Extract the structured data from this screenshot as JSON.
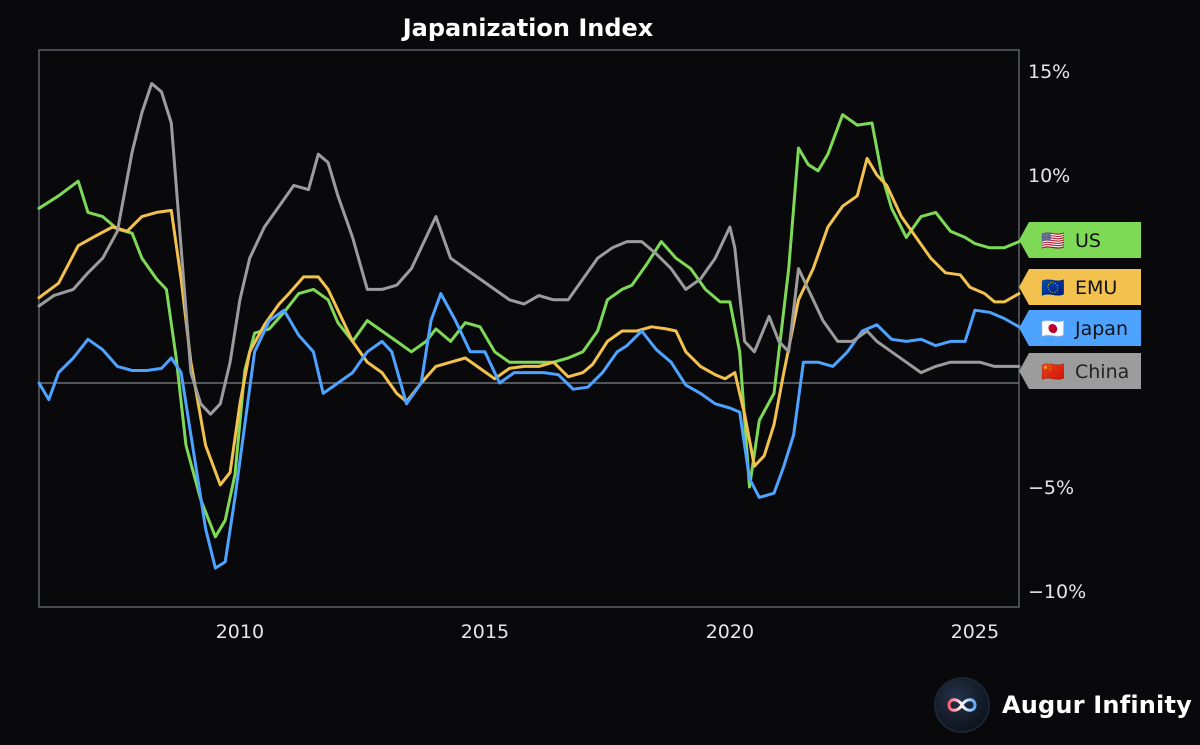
{
  "chart_data": {
    "type": "line",
    "title": "Japanization Index",
    "xlabel": "",
    "ylabel": "",
    "x_range": [
      2005.9,
      2025.9
    ],
    "ylim": [
      -11,
      16
    ],
    "x_ticks": [
      2010,
      2015,
      2020,
      2025
    ],
    "x_tick_labels": [
      "2010",
      "2015",
      "2020",
      "2025"
    ],
    "y_ticks": [
      15,
      10,
      5,
      -5,
      -10
    ],
    "y_tick_labels": [
      "15%",
      "10%",
      "5%",
      "−5%",
      "−10%"
    ],
    "zero_line": true,
    "grid": false,
    "legend": "right-edge end-of-line tags",
    "series": [
      {
        "name": "US",
        "flag": "🇺🇸",
        "color": "#7ed957",
        "tag_text_color": "#111111",
        "points": [
          [
            2005.9,
            8.4
          ],
          [
            2006.3,
            9.0
          ],
          [
            2006.7,
            9.7
          ],
          [
            2006.9,
            8.2
          ],
          [
            2007.2,
            8.0
          ],
          [
            2007.5,
            7.4
          ],
          [
            2007.8,
            7.2
          ],
          [
            2008.0,
            6.0
          ],
          [
            2008.3,
            5.0
          ],
          [
            2008.5,
            4.5
          ],
          [
            2008.7,
            1.2
          ],
          [
            2008.9,
            -3.0
          ],
          [
            2009.2,
            -5.6
          ],
          [
            2009.5,
            -7.4
          ],
          [
            2009.7,
            -6.6
          ],
          [
            2009.9,
            -4.4
          ],
          [
            2010.1,
            0.6
          ],
          [
            2010.3,
            2.4
          ],
          [
            2010.6,
            2.6
          ],
          [
            2010.9,
            3.4
          ],
          [
            2011.2,
            4.3
          ],
          [
            2011.5,
            4.5
          ],
          [
            2011.8,
            4.0
          ],
          [
            2012.0,
            2.9
          ],
          [
            2012.3,
            2.0
          ],
          [
            2012.6,
            3.0
          ],
          [
            2012.9,
            2.5
          ],
          [
            2013.2,
            2.0
          ],
          [
            2013.5,
            1.5
          ],
          [
            2013.8,
            2.0
          ],
          [
            2014.0,
            2.6
          ],
          [
            2014.3,
            2.0
          ],
          [
            2014.6,
            2.9
          ],
          [
            2014.9,
            2.7
          ],
          [
            2015.2,
            1.5
          ],
          [
            2015.5,
            1.0
          ],
          [
            2015.8,
            1.0
          ],
          [
            2016.1,
            1.0
          ],
          [
            2016.4,
            1.0
          ],
          [
            2016.7,
            1.2
          ],
          [
            2017.0,
            1.5
          ],
          [
            2017.3,
            2.5
          ],
          [
            2017.5,
            4.0
          ],
          [
            2017.8,
            4.5
          ],
          [
            2018.0,
            4.7
          ],
          [
            2018.3,
            5.7
          ],
          [
            2018.6,
            6.8
          ],
          [
            2018.9,
            6.0
          ],
          [
            2019.2,
            5.5
          ],
          [
            2019.5,
            4.5
          ],
          [
            2019.8,
            3.9
          ],
          [
            2020.0,
            3.9
          ],
          [
            2020.2,
            1.5
          ],
          [
            2020.4,
            -5.0
          ],
          [
            2020.6,
            -1.8
          ],
          [
            2020.9,
            -0.5
          ],
          [
            2021.0,
            1.5
          ],
          [
            2021.2,
            5.5
          ],
          [
            2021.4,
            11.3
          ],
          [
            2021.6,
            10.5
          ],
          [
            2021.8,
            10.2
          ],
          [
            2022.0,
            11.0
          ],
          [
            2022.3,
            12.9
          ],
          [
            2022.6,
            12.4
          ],
          [
            2022.9,
            12.5
          ],
          [
            2023.1,
            10.0
          ],
          [
            2023.3,
            8.4
          ],
          [
            2023.6,
            7.0
          ],
          [
            2023.9,
            8.0
          ],
          [
            2024.2,
            8.2
          ],
          [
            2024.5,
            7.3
          ],
          [
            2024.8,
            7.0
          ],
          [
            2025.0,
            6.7
          ],
          [
            2025.3,
            6.5
          ],
          [
            2025.6,
            6.5
          ],
          [
            2025.9,
            6.8
          ]
        ]
      },
      {
        "name": "EMU",
        "flag": "🇪🇺",
        "color": "#f2c14e",
        "tag_text_color": "#111111",
        "points": [
          [
            2005.9,
            4.1
          ],
          [
            2006.3,
            4.8
          ],
          [
            2006.7,
            6.6
          ],
          [
            2007.0,
            7.0
          ],
          [
            2007.4,
            7.5
          ],
          [
            2007.7,
            7.3
          ],
          [
            2008.0,
            8.0
          ],
          [
            2008.3,
            8.2
          ],
          [
            2008.6,
            8.3
          ],
          [
            2008.8,
            5.0
          ],
          [
            2009.0,
            1.0
          ],
          [
            2009.3,
            -3.0
          ],
          [
            2009.6,
            -4.9
          ],
          [
            2009.8,
            -4.3
          ],
          [
            2010.0,
            -1.0
          ],
          [
            2010.2,
            1.5
          ],
          [
            2010.5,
            2.8
          ],
          [
            2010.8,
            3.8
          ],
          [
            2011.0,
            4.3
          ],
          [
            2011.3,
            5.1
          ],
          [
            2011.6,
            5.1
          ],
          [
            2011.8,
            4.5
          ],
          [
            2012.0,
            3.5
          ],
          [
            2012.3,
            2.0
          ],
          [
            2012.6,
            1.0
          ],
          [
            2012.9,
            0.5
          ],
          [
            2013.2,
            -0.5
          ],
          [
            2013.4,
            -0.9
          ],
          [
            2013.7,
            0.0
          ],
          [
            2014.0,
            0.8
          ],
          [
            2014.3,
            1.0
          ],
          [
            2014.6,
            1.2
          ],
          [
            2014.9,
            0.7
          ],
          [
            2015.2,
            0.2
          ],
          [
            2015.5,
            0.7
          ],
          [
            2015.8,
            0.8
          ],
          [
            2016.1,
            0.8
          ],
          [
            2016.4,
            1.0
          ],
          [
            2016.7,
            0.3
          ],
          [
            2017.0,
            0.5
          ],
          [
            2017.2,
            0.9
          ],
          [
            2017.5,
            2.0
          ],
          [
            2017.8,
            2.5
          ],
          [
            2018.1,
            2.5
          ],
          [
            2018.4,
            2.7
          ],
          [
            2018.7,
            2.6
          ],
          [
            2018.9,
            2.5
          ],
          [
            2019.1,
            1.5
          ],
          [
            2019.4,
            0.8
          ],
          [
            2019.7,
            0.4
          ],
          [
            2019.9,
            0.2
          ],
          [
            2020.1,
            0.5
          ],
          [
            2020.3,
            -1.5
          ],
          [
            2020.5,
            -4.0
          ],
          [
            2020.7,
            -3.5
          ],
          [
            2020.9,
            -2.0
          ],
          [
            2021.1,
            0.5
          ],
          [
            2021.4,
            4.0
          ],
          [
            2021.7,
            5.5
          ],
          [
            2022.0,
            7.5
          ],
          [
            2022.3,
            8.5
          ],
          [
            2022.6,
            9.0
          ],
          [
            2022.8,
            10.8
          ],
          [
            2023.0,
            10.0
          ],
          [
            2023.2,
            9.5
          ],
          [
            2023.5,
            8.0
          ],
          [
            2023.8,
            7.0
          ],
          [
            2024.1,
            6.0
          ],
          [
            2024.4,
            5.3
          ],
          [
            2024.7,
            5.2
          ],
          [
            2024.9,
            4.6
          ],
          [
            2025.2,
            4.3
          ],
          [
            2025.4,
            3.9
          ],
          [
            2025.6,
            3.9
          ],
          [
            2025.9,
            4.3
          ]
        ]
      },
      {
        "name": "Japan",
        "flag": "🇯🇵",
        "color": "#4da3ff",
        "tag_text_color": "#111111",
        "points": [
          [
            2005.9,
            0.0
          ],
          [
            2006.1,
            -0.8
          ],
          [
            2006.3,
            0.5
          ],
          [
            2006.6,
            1.2
          ],
          [
            2006.9,
            2.1
          ],
          [
            2007.2,
            1.6
          ],
          [
            2007.5,
            0.8
          ],
          [
            2007.8,
            0.6
          ],
          [
            2008.1,
            0.6
          ],
          [
            2008.4,
            0.7
          ],
          [
            2008.6,
            1.2
          ],
          [
            2008.8,
            0.5
          ],
          [
            2009.0,
            -2.5
          ],
          [
            2009.3,
            -7.0
          ],
          [
            2009.5,
            -8.9
          ],
          [
            2009.7,
            -8.6
          ],
          [
            2009.9,
            -5.5
          ],
          [
            2010.1,
            -2.0
          ],
          [
            2010.3,
            1.5
          ],
          [
            2010.6,
            3.0
          ],
          [
            2010.9,
            3.5
          ],
          [
            2011.2,
            2.3
          ],
          [
            2011.5,
            1.5
          ],
          [
            2011.7,
            -0.5
          ],
          [
            2012.0,
            0.0
          ],
          [
            2012.3,
            0.5
          ],
          [
            2012.6,
            1.5
          ],
          [
            2012.9,
            2.0
          ],
          [
            2013.1,
            1.5
          ],
          [
            2013.4,
            -1.0
          ],
          [
            2013.7,
            0.0
          ],
          [
            2013.9,
            3.0
          ],
          [
            2014.1,
            4.3
          ],
          [
            2014.4,
            3.0
          ],
          [
            2014.7,
            1.5
          ],
          [
            2015.0,
            1.5
          ],
          [
            2015.3,
            0.0
          ],
          [
            2015.6,
            0.5
          ],
          [
            2015.9,
            0.5
          ],
          [
            2016.2,
            0.5
          ],
          [
            2016.5,
            0.4
          ],
          [
            2016.8,
            -0.3
          ],
          [
            2017.1,
            -0.2
          ],
          [
            2017.4,
            0.5
          ],
          [
            2017.7,
            1.5
          ],
          [
            2017.9,
            1.8
          ],
          [
            2018.2,
            2.5
          ],
          [
            2018.5,
            1.6
          ],
          [
            2018.8,
            1.0
          ],
          [
            2019.1,
            -0.1
          ],
          [
            2019.4,
            -0.5
          ],
          [
            2019.7,
            -1.0
          ],
          [
            2020.0,
            -1.2
          ],
          [
            2020.2,
            -1.4
          ],
          [
            2020.4,
            -4.6
          ],
          [
            2020.6,
            -5.5
          ],
          [
            2020.9,
            -5.3
          ],
          [
            2021.1,
            -4.0
          ],
          [
            2021.3,
            -2.5
          ],
          [
            2021.5,
            1.0
          ],
          [
            2021.8,
            1.0
          ],
          [
            2022.1,
            0.8
          ],
          [
            2022.4,
            1.5
          ],
          [
            2022.7,
            2.5
          ],
          [
            2023.0,
            2.8
          ],
          [
            2023.3,
            2.1
          ],
          [
            2023.6,
            2.0
          ],
          [
            2023.9,
            2.1
          ],
          [
            2024.2,
            1.8
          ],
          [
            2024.5,
            2.0
          ],
          [
            2024.8,
            2.0
          ],
          [
            2025.0,
            3.5
          ],
          [
            2025.3,
            3.4
          ],
          [
            2025.6,
            3.1
          ],
          [
            2025.9,
            2.7
          ]
        ]
      },
      {
        "name": "China",
        "flag": "🇨🇳",
        "color": "#9c9c9c",
        "tag_text_color": "#222222",
        "points": [
          [
            2005.9,
            3.7
          ],
          [
            2006.2,
            4.2
          ],
          [
            2006.6,
            4.5
          ],
          [
            2006.9,
            5.3
          ],
          [
            2007.2,
            6.0
          ],
          [
            2007.5,
            7.3
          ],
          [
            2007.8,
            11.1
          ],
          [
            2008.0,
            13.0
          ],
          [
            2008.2,
            14.4
          ],
          [
            2008.4,
            14.0
          ],
          [
            2008.6,
            12.5
          ],
          [
            2008.8,
            6.5
          ],
          [
            2009.0,
            0.5
          ],
          [
            2009.2,
            -1.0
          ],
          [
            2009.4,
            -1.5
          ],
          [
            2009.6,
            -1.0
          ],
          [
            2009.8,
            1.0
          ],
          [
            2010.0,
            4.0
          ],
          [
            2010.2,
            6.0
          ],
          [
            2010.5,
            7.5
          ],
          [
            2010.8,
            8.5
          ],
          [
            2011.1,
            9.5
          ],
          [
            2011.4,
            9.3
          ],
          [
            2011.6,
            11.0
          ],
          [
            2011.8,
            10.6
          ],
          [
            2012.0,
            9.0
          ],
          [
            2012.3,
            7.0
          ],
          [
            2012.6,
            4.5
          ],
          [
            2012.9,
            4.5
          ],
          [
            2013.2,
            4.7
          ],
          [
            2013.5,
            5.5
          ],
          [
            2013.8,
            7.0
          ],
          [
            2014.0,
            8.0
          ],
          [
            2014.3,
            6.0
          ],
          [
            2014.6,
            5.5
          ],
          [
            2014.9,
            5.0
          ],
          [
            2015.2,
            4.5
          ],
          [
            2015.5,
            4.0
          ],
          [
            2015.8,
            3.8
          ],
          [
            2016.1,
            4.2
          ],
          [
            2016.4,
            4.0
          ],
          [
            2016.7,
            4.0
          ],
          [
            2017.0,
            5.0
          ],
          [
            2017.3,
            6.0
          ],
          [
            2017.6,
            6.5
          ],
          [
            2017.9,
            6.8
          ],
          [
            2018.2,
            6.8
          ],
          [
            2018.5,
            6.2
          ],
          [
            2018.8,
            5.5
          ],
          [
            2019.1,
            4.5
          ],
          [
            2019.4,
            5.0
          ],
          [
            2019.7,
            6.0
          ],
          [
            2020.0,
            7.5
          ],
          [
            2020.1,
            6.5
          ],
          [
            2020.3,
            2.0
          ],
          [
            2020.5,
            1.5
          ],
          [
            2020.8,
            3.2
          ],
          [
            2021.0,
            2.0
          ],
          [
            2021.2,
            1.5
          ],
          [
            2021.4,
            5.5
          ],
          [
            2021.6,
            4.5
          ],
          [
            2021.9,
            3.0
          ],
          [
            2022.2,
            2.0
          ],
          [
            2022.5,
            2.0
          ],
          [
            2022.8,
            2.5
          ],
          [
            2023.0,
            2.0
          ],
          [
            2023.3,
            1.5
          ],
          [
            2023.6,
            1.0
          ],
          [
            2023.9,
            0.5
          ],
          [
            2024.2,
            0.8
          ],
          [
            2024.5,
            1.0
          ],
          [
            2024.8,
            1.0
          ],
          [
            2025.1,
            1.0
          ],
          [
            2025.4,
            0.8
          ],
          [
            2025.7,
            0.8
          ],
          [
            2025.9,
            0.8
          ]
        ]
      }
    ]
  },
  "branding": {
    "name": "Augur Infinity",
    "logo_icon": "infinity-icon"
  }
}
